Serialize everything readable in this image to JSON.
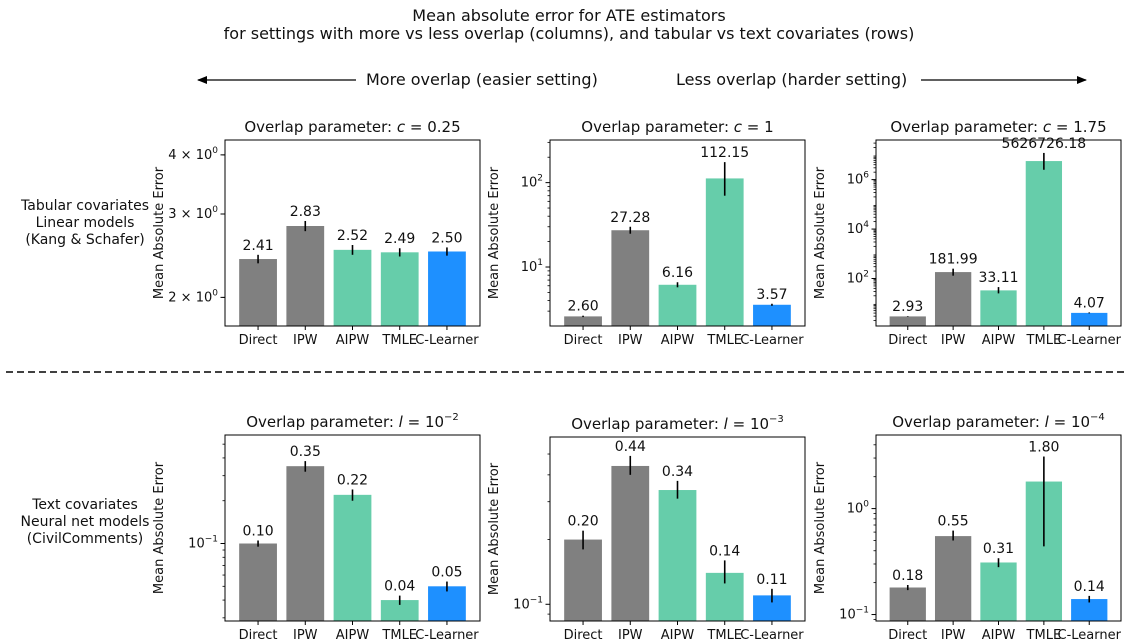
{
  "title_line1": "Mean absolute error for ATE estimators",
  "title_line2": "for settings with more vs less overlap (columns), and tabular vs text covariates (rows)",
  "arrow_left_label": "More overlap (easier setting)",
  "arrow_right_label": "Less overlap (harder setting)",
  "row_labels": [
    [
      "Tabular covariates",
      "Linear models",
      "(Kang & Schafer)"
    ],
    [
      "Text covariates",
      "Neural net models",
      "(CivilComments)"
    ]
  ],
  "colors": {
    "gray": "#808080",
    "green": "#66cdaa",
    "blue": "#1e90ff",
    "err": "#000000"
  },
  "chart_data": [
    {
      "type": "bar",
      "title": "Overlap parameter: c = 0.25",
      "title_prefix": "Overlap parameter: ",
      "title_math": "c = 0.25",
      "ylabel": "Mean Absolute Error",
      "yscale": "log",
      "ylim": [
        1.74,
        4.3
      ],
      "yticks": [
        {
          "v": 2,
          "b": "2",
          "e": "0"
        },
        {
          "v": 3,
          "b": "3",
          "e": "0"
        },
        {
          "v": 4,
          "b": "4",
          "e": "0"
        }
      ],
      "categories": [
        "Direct",
        "IPW",
        "AIPW",
        "TMLE",
        "C-Learner"
      ],
      "values": [
        2.41,
        2.83,
        2.52,
        2.49,
        2.5
      ],
      "labels": [
        "2.41",
        "2.83",
        "2.52",
        "2.49",
        "2.50"
      ],
      "err_low": [
        2.36,
        2.76,
        2.46,
        2.44,
        2.45
      ],
      "err_high": [
        2.46,
        2.9,
        2.58,
        2.54,
        2.55
      ],
      "colors": [
        "gray",
        "gray",
        "green",
        "green",
        "blue"
      ]
    },
    {
      "type": "bar",
      "title": "Overlap parameter: c = 1",
      "title_prefix": "Overlap parameter: ",
      "title_math": "c = 1",
      "ylabel": "Mean Absolute Error",
      "yscale": "log",
      "ylim": [
        2.0,
        320
      ],
      "yticks": [
        {
          "v": 10,
          "b": "10",
          "e": "1"
        },
        {
          "v": 100,
          "b": "10",
          "e": "2"
        }
      ],
      "categories": [
        "Direct",
        "IPW",
        "AIPW",
        "TMLE",
        "C-Learner"
      ],
      "values": [
        2.6,
        27.28,
        6.16,
        112.15,
        3.57
      ],
      "labels": [
        "2.60",
        "27.28",
        "6.16",
        "112.15",
        "3.57"
      ],
      "err_low": [
        2.55,
        24.8,
        5.75,
        70,
        3.47
      ],
      "err_high": [
        2.65,
        30.0,
        6.6,
        175,
        3.67
      ],
      "colors": [
        "gray",
        "gray",
        "green",
        "green",
        "blue"
      ]
    },
    {
      "type": "bar",
      "title": "Overlap parameter: c = 1.75",
      "title_prefix": "Overlap parameter: ",
      "title_math": "c = 1.75",
      "ylabel": "Mean Absolute Error",
      "yscale": "log",
      "ylim": [
        1.2,
        40000000
      ],
      "yticks": [
        {
          "v": 100,
          "b": "10",
          "e": "2"
        },
        {
          "v": 10000,
          "b": "10",
          "e": "4"
        },
        {
          "v": 1000000,
          "b": "10",
          "e": "6"
        }
      ],
      "categories": [
        "Direct",
        "IPW",
        "AIPW",
        "TMLE",
        "C-Learner"
      ],
      "values": [
        2.93,
        181.99,
        33.11,
        5626726.18,
        4.07
      ],
      "labels": [
        "2.93",
        "181.99",
        "33.11",
        "5626726.18",
        "4.07"
      ],
      "err_low": [
        2.85,
        130,
        25,
        2500000,
        3.9
      ],
      "err_high": [
        3.0,
        250,
        45,
        12000000,
        4.25
      ],
      "colors": [
        "gray",
        "gray",
        "green",
        "green",
        "blue"
      ]
    },
    {
      "type": "bar",
      "title": "Overlap parameter: l = 10^-2",
      "title_prefix": "Overlap parameter: ",
      "title_math": "l = 10^-2",
      "ylabel": "Mean Absolute Error",
      "yscale": "log",
      "ylim": [
        0.0285,
        0.58
      ],
      "yticks": [
        {
          "v": 0.1,
          "b": "10",
          "e": "−1"
        }
      ],
      "categories": [
        "Direct",
        "IPW",
        "AIPW",
        "TMLE",
        "C-Learner"
      ],
      "values": [
        0.1,
        0.35,
        0.22,
        0.04,
        0.05
      ],
      "labels": [
        "0.10",
        "0.35",
        "0.22",
        "0.04",
        "0.05"
      ],
      "err_low": [
        0.095,
        0.32,
        0.2,
        0.037,
        0.046
      ],
      "err_high": [
        0.105,
        0.38,
        0.24,
        0.043,
        0.054
      ],
      "colors": [
        "gray",
        "gray",
        "green",
        "green",
        "blue"
      ]
    },
    {
      "type": "bar",
      "title": "Overlap parameter: l = 10^-3",
      "title_prefix": "Overlap parameter: ",
      "title_math": "l = 10^-3",
      "ylabel": "Mean Absolute Error",
      "yscale": "log",
      "ylim": [
        0.0836,
        0.6
      ],
      "yticks": [
        {
          "v": 0.1,
          "b": "10",
          "e": "−1"
        }
      ],
      "categories": [
        "Direct",
        "IPW",
        "AIPW",
        "TMLE",
        "C-Learner"
      ],
      "values": [
        0.2,
        0.44,
        0.34,
        0.14,
        0.11
      ],
      "labels": [
        "0.20",
        "0.44",
        "0.34",
        "0.14",
        "0.11"
      ],
      "err_low": [
        0.18,
        0.4,
        0.31,
        0.125,
        0.102
      ],
      "err_high": [
        0.22,
        0.49,
        0.375,
        0.16,
        0.118
      ],
      "colors": [
        "gray",
        "gray",
        "green",
        "green",
        "blue"
      ]
    },
    {
      "type": "bar",
      "title": "Overlap parameter: l = 10^-4",
      "title_prefix": "Overlap parameter: ",
      "title_math": "l = 10^-4",
      "ylabel": "Mean Absolute Error",
      "yscale": "log",
      "ylim": [
        0.0869,
        4.95
      ],
      "yticks": [
        {
          "v": 0.1,
          "b": "10",
          "e": "−1"
        },
        {
          "v": 1,
          "b": "10",
          "e": "0"
        }
      ],
      "categories": [
        "Direct",
        "IPW",
        "AIPW",
        "TMLE",
        "C-Learner"
      ],
      "values": [
        0.18,
        0.55,
        0.31,
        1.8,
        0.14
      ],
      "labels": [
        "0.18",
        "0.55",
        "0.31",
        "1.80",
        "0.14"
      ],
      "err_low": [
        0.17,
        0.5,
        0.28,
        0.44,
        0.13
      ],
      "err_high": [
        0.19,
        0.62,
        0.34,
        3.1,
        0.15
      ],
      "colors": [
        "gray",
        "gray",
        "green",
        "green",
        "blue"
      ]
    }
  ]
}
